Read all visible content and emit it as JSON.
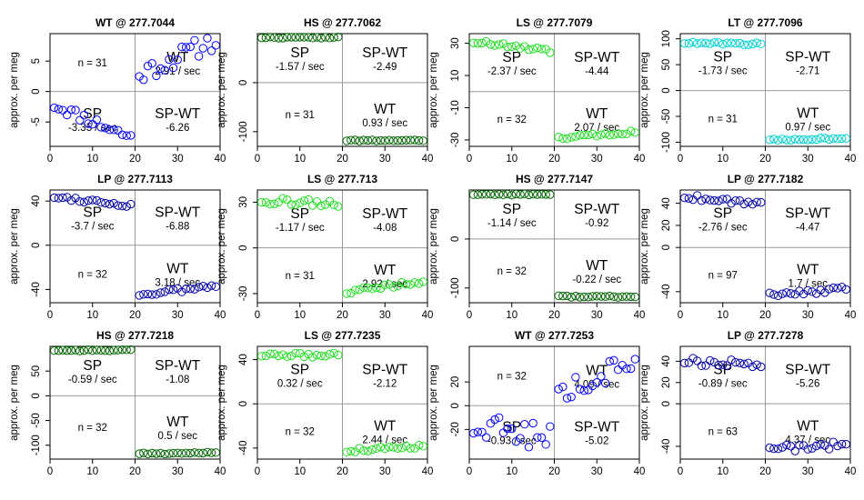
{
  "chart_data": [
    {
      "type": "scatter",
      "title": "WT @ 277.7044",
      "ylabel": "approx. per meg",
      "xlim": [
        0,
        40
      ],
      "ylim": [
        -9,
        9.5
      ],
      "yticks": [
        -5,
        0,
        5
      ],
      "xticks": [
        0,
        10,
        20,
        30,
        40
      ],
      "color": "#0000ff",
      "labels": {
        "tl": [
          "n = 31"
        ],
        "tr": [
          "WT",
          "2.91 / sec"
        ],
        "bl": [
          "SP",
          "-3.35 / sec"
        ],
        "br": [
          "SP-WT",
          "-6.26"
        ]
      },
      "seg1": {
        "x0": 1,
        "x1": 19,
        "y0": -2.2,
        "y1": -7.5,
        "jitter": 0.9
      },
      "seg2": {
        "x0": 21,
        "x1": 39,
        "y0": 2.8,
        "y1": 8.5,
        "jitter": 1.6
      },
      "seed": 11
    },
    {
      "type": "scatter",
      "title": "HS @ 277.7062",
      "ylabel": "approx. per meg",
      "xlim": [
        0,
        40
      ],
      "ylim": [
        -130,
        100
      ],
      "yticks": [
        -100,
        0
      ],
      "xticks": [
        0,
        10,
        20,
        30,
        40
      ],
      "color": "#006400",
      "labels": {
        "tl": [
          "SP",
          "-1.57 / sec"
        ],
        "tr": [
          "SP-WT",
          "-2.49"
        ],
        "bl": [
          "n = 31"
        ],
        "br": [
          "WT",
          "0.93 / sec"
        ]
      },
      "seg1": {
        "x0": 1,
        "x1": 19,
        "y0": 92,
        "y1": 92,
        "jitter": 1.2
      },
      "seg2": {
        "x0": 21,
        "x1": 39,
        "y0": -118,
        "y1": -118,
        "jitter": 1.2
      },
      "seed": 22
    },
    {
      "type": "scatter",
      "title": "LS @ 277.7079",
      "ylabel": "approx. per meg",
      "xlim": [
        0,
        40
      ],
      "ylim": [
        -34,
        36
      ],
      "yticks": [
        -30,
        -10,
        10,
        30
      ],
      "xticks": [
        0,
        10,
        20,
        30,
        40
      ],
      "color": "#22dd22",
      "labels": {
        "tl": [
          "SP",
          "-2.37 / sec"
        ],
        "tr": [
          "SP-WT",
          "-4.44"
        ],
        "bl": [
          "n = 32"
        ],
        "br": [
          "WT",
          "2.07 / sec"
        ]
      },
      "seg1": {
        "x0": 1,
        "x1": 19,
        "y0": 31,
        "y1": 25,
        "jitter": 1.5
      },
      "seg2": {
        "x0": 21,
        "x1": 39,
        "y0": -29,
        "y1": -25,
        "jitter": 1.0
      },
      "seed": 33
    },
    {
      "type": "scatter",
      "title": "LT @ 277.7096",
      "ylabel": "approx. per meg",
      "xlim": [
        0,
        40
      ],
      "ylim": [
        -108,
        110
      ],
      "yticks": [
        -100,
        -50,
        0,
        50,
        100
      ],
      "xticks": [
        0,
        10,
        20,
        30,
        40
      ],
      "color": "#00d0d0",
      "labels": {
        "tl": [
          "SP",
          "-1.73 / sec"
        ],
        "tr": [
          "SP-WT",
          "-2.71"
        ],
        "bl": [
          "n = 31"
        ],
        "br": [
          "WT",
          "0.97 / sec"
        ]
      },
      "seg1": {
        "x0": 1,
        "x1": 19,
        "y0": 92,
        "y1": 90,
        "jitter": 2
      },
      "seg2": {
        "x0": 21,
        "x1": 39,
        "y0": -96,
        "y1": -92,
        "jitter": 2
      },
      "seed": 44
    },
    {
      "type": "scatter",
      "title": "LP @ 277.7113",
      "ylabel": "approx. per meg",
      "xlim": [
        0,
        40
      ],
      "ylim": [
        -52,
        50
      ],
      "yticks": [
        -40,
        0,
        40
      ],
      "xticks": [
        0,
        10,
        20,
        30,
        40
      ],
      "color": "#0000aa",
      "labels": {
        "tl": [
          "SP",
          "-3.7 / sec"
        ],
        "tr": [
          "SP-WT",
          "-6.88"
        ],
        "bl": [
          "n = 32"
        ],
        "br": [
          "WT",
          "3.18 / sec"
        ]
      },
      "seg1": {
        "x0": 1,
        "x1": 19,
        "y0": 44,
        "y1": 36,
        "jitter": 2
      },
      "seg2": {
        "x0": 21,
        "x1": 39,
        "y0": -45,
        "y1": -37,
        "jitter": 2
      },
      "seed": 55
    },
    {
      "type": "scatter",
      "title": "LS @ 277.713",
      "ylabel": "approx. per meg",
      "xlim": [
        0,
        40
      ],
      "ylim": [
        -36,
        38
      ],
      "yticks": [
        -30,
        0,
        30
      ],
      "xticks": [
        0,
        10,
        20,
        30,
        40
      ],
      "color": "#22dd22",
      "labels": {
        "tl": [
          "SP",
          "-1.17 / sec"
        ],
        "tr": [
          "SP-WT",
          "-4.08"
        ],
        "bl": [
          "n = 31"
        ],
        "br": [
          "WT",
          "2.92 / sec"
        ]
      },
      "seg1": {
        "x0": 1,
        "x1": 19,
        "y0": 31,
        "y1": 29,
        "jitter": 2.2
      },
      "seg2": {
        "x0": 21,
        "x1": 39,
        "y0": -29,
        "y1": -22,
        "jitter": 1.5
      },
      "seed": 66
    },
    {
      "type": "scatter",
      "title": "HS @ 277.7147",
      "ylabel": "approx. per meg",
      "xlim": [
        0,
        40
      ],
      "ylim": [
        -130,
        100
      ],
      "yticks": [
        -100,
        0
      ],
      "xticks": [
        0,
        10,
        20,
        30,
        40
      ],
      "color": "#006400",
      "labels": {
        "tl": [
          "SP",
          "-1.14 / sec"
        ],
        "tr": [
          "SP-WT",
          "-0.92"
        ],
        "bl": [
          "n = 32"
        ],
        "br": [
          "WT",
          "-0.22 / sec"
        ]
      },
      "seg1": {
        "x0": 1,
        "x1": 19,
        "y0": 91,
        "y1": 91,
        "jitter": 1.5
      },
      "seg2": {
        "x0": 21,
        "x1": 39,
        "y0": -117,
        "y1": -118,
        "jitter": 1.5
      },
      "seed": 77
    },
    {
      "type": "scatter",
      "title": "LP @ 277.7182",
      "ylabel": "approx. per meg",
      "xlim": [
        0,
        40
      ],
      "ylim": [
        -50,
        52
      ],
      "yticks": [
        -40,
        0,
        20,
        40
      ],
      "xticks": [
        0,
        10,
        20,
        30,
        40
      ],
      "color": "#0000aa",
      "labels": {
        "tl": [
          "SP",
          "-2.76 / sec"
        ],
        "tr": [
          "SP-WT",
          "-4.47"
        ],
        "bl": [
          "n = 97"
        ],
        "br": [
          "WT",
          "1.7 / sec"
        ]
      },
      "seg1": {
        "x0": 1,
        "x1": 19,
        "y0": 46,
        "y1": 40,
        "jitter": 2.5
      },
      "seg2": {
        "x0": 21,
        "x1": 39,
        "y0": -42,
        "y1": -38,
        "jitter": 2.5
      },
      "seed": 88
    },
    {
      "type": "scatter",
      "title": "HS @ 277.7218",
      "ylabel": "approx. per meg",
      "xlim": [
        0,
        40
      ],
      "ylim": [
        -128,
        100
      ],
      "yticks": [
        -100,
        -50,
        0,
        50
      ],
      "xticks": [
        0,
        10,
        20,
        30,
        40
      ],
      "color": "#006400",
      "labels": {
        "tl": [
          "SP",
          "-0.59 / sec"
        ],
        "tr": [
          "SP-WT",
          "-1.08"
        ],
        "bl": [
          "n = 32"
        ],
        "br": [
          "WT",
          "0.5 / sec"
        ]
      },
      "seg1": {
        "x0": 1,
        "x1": 19,
        "y0": 92,
        "y1": 92,
        "jitter": 1.5
      },
      "seg2": {
        "x0": 21,
        "x1": 39,
        "y0": -117,
        "y1": -115,
        "jitter": 1.5
      },
      "seed": 99
    },
    {
      "type": "scatter",
      "title": "LS @ 277.7235",
      "ylabel": "approx. per meg",
      "xlim": [
        0,
        40
      ],
      "ylim": [
        -50,
        52
      ],
      "yticks": [
        -40,
        0,
        40
      ],
      "xticks": [
        0,
        10,
        20,
        30,
        40
      ],
      "color": "#22dd22",
      "labels": {
        "tl": [
          "SP",
          "0.32 / sec"
        ],
        "tr": [
          "SP-WT",
          "-2.12"
        ],
        "bl": [
          "n = 32"
        ],
        "br": [
          "WT",
          "2.44 / sec"
        ]
      },
      "seg1": {
        "x0": 1,
        "x1": 19,
        "y0": 44,
        "y1": 44,
        "jitter": 2
      },
      "seg2": {
        "x0": 21,
        "x1": 39,
        "y0": -42,
        "y1": -38,
        "jitter": 2
      },
      "seed": 111
    },
    {
      "type": "scatter",
      "title": "WT @ 277.7253",
      "ylabel": "approx. per meg",
      "xlim": [
        0,
        40
      ],
      "ylim": [
        -45,
        50
      ],
      "yticks": [
        -20,
        0,
        20
      ],
      "xticks": [
        0,
        10,
        20,
        30,
        40
      ],
      "color": "#0000ff",
      "labels": {
        "tl": [
          "n = 32"
        ],
        "tr": [
          "WT",
          "4.09 / sec"
        ],
        "bl": [
          "SP",
          "-0.93 / sec"
        ],
        "br": [
          "SP-WT",
          "-5.02"
        ]
      },
      "seg1": {
        "x0": 1,
        "x1": 19,
        "y0": -18,
        "y1": -25,
        "jitter": 12
      },
      "seg2": {
        "x0": 21,
        "x1": 39,
        "y0": 8,
        "y1": 40,
        "jitter": 9
      },
      "seed": 122
    },
    {
      "type": "scatter",
      "title": "LP @ 277.7278",
      "ylabel": "approx. per meg",
      "xlim": [
        0,
        40
      ],
      "ylim": [
        -52,
        54
      ],
      "yticks": [
        -40,
        0,
        20,
        40
      ],
      "xticks": [
        0,
        10,
        20,
        30,
        40
      ],
      "color": "#0000aa",
      "labels": {
        "tl": [
          "SP",
          "-0.89 / sec"
        ],
        "tr": [
          "SP-WT",
          "-5.26"
        ],
        "bl": [
          "n = 63"
        ],
        "br": [
          "WT",
          "4.37 / sec"
        ]
      },
      "seg1": {
        "x0": 1,
        "x1": 19,
        "y0": 40,
        "y1": 38,
        "jitter": 4
      },
      "seg2": {
        "x0": 21,
        "x1": 39,
        "y0": -42,
        "y1": -38,
        "jitter": 4
      },
      "seed": 133
    }
  ]
}
